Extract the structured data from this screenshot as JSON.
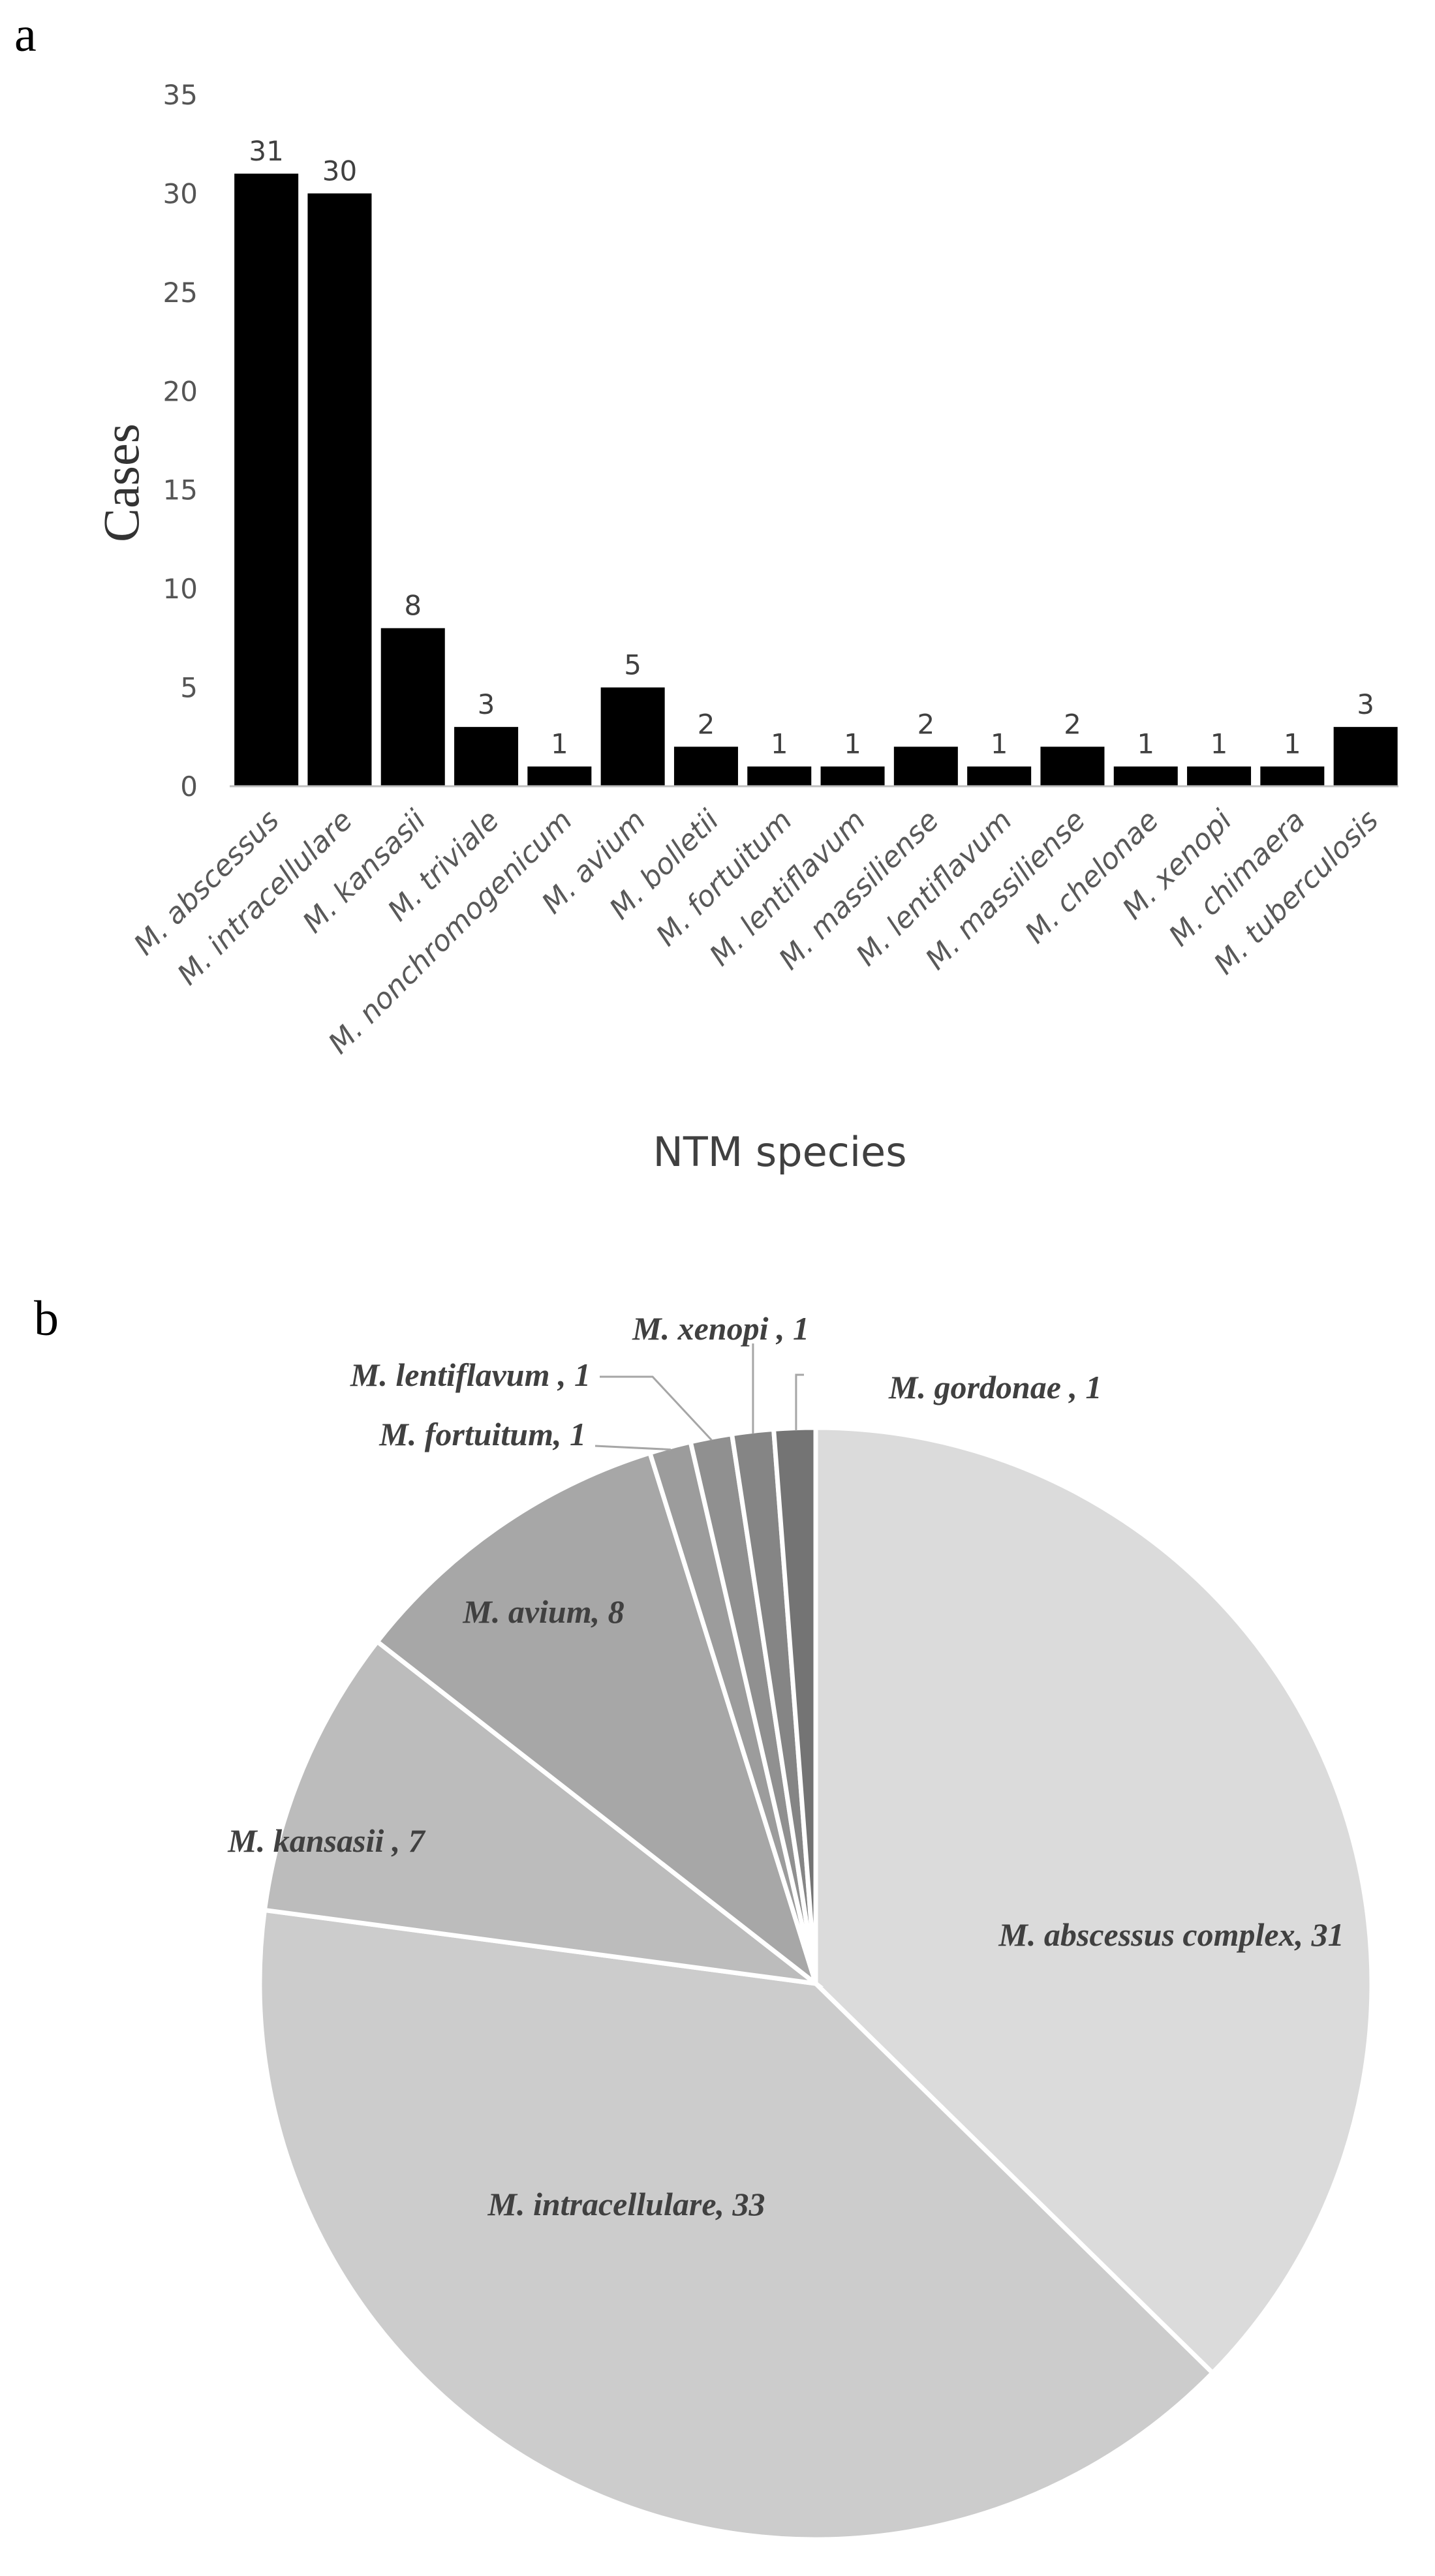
{
  "chart_data": [
    {
      "type": "bar",
      "panel_label": "a",
      "xlabel": "NTM species",
      "ylabel": "Cases",
      "ylim": [
        0,
        35
      ],
      "yticks": [
        "0",
        "5",
        "10",
        "15",
        "20",
        "25",
        "30",
        "35"
      ],
      "grid": false,
      "categories": [
        "M. abscessus",
        "M. intracellulare",
        "M. kansasii",
        "M. triviale",
        "M. nonchromogenicum",
        "M. avium",
        "M. bolletii",
        "M. fortuitum",
        "M. lentiflavum",
        "M. massiliense",
        "M. lentiflavum",
        "M. massiliense",
        "M. chelonae",
        "M. xenopi",
        "M. chimaera",
        "M. tuberculosis"
      ],
      "values": [
        31,
        30,
        8,
        3,
        1,
        5,
        2,
        1,
        1,
        2,
        1,
        2,
        1,
        1,
        1,
        3
      ],
      "value_labels": [
        "31",
        "30",
        "8",
        "3",
        "1",
        "5",
        "2",
        "1",
        "1",
        "2",
        "1",
        "2",
        "1",
        "1",
        "1",
        "3"
      ],
      "bar_color": "#000000"
    },
    {
      "type": "pie",
      "panel_label": "b",
      "slices": [
        {
          "label": "M. abscessus complex, 31",
          "value": 31,
          "color": "#dbdbdb"
        },
        {
          "label": "M. intracellulare, 33",
          "value": 33,
          "color": "#cccccc"
        },
        {
          "label": "M. kansasii , 7",
          "value": 7,
          "color": "#bcbcbc"
        },
        {
          "label": "M. avium, 8",
          "value": 8,
          "color": "#a7a7a7"
        },
        {
          "label": "M. fortuitum, 1",
          "value": 1,
          "color": "#9c9c9c"
        },
        {
          "label": "M. lentiflavum , 1",
          "value": 1,
          "color": "#909090"
        },
        {
          "label": "M. xenopi , 1",
          "value": 1,
          "color": "#858585"
        },
        {
          "label": "M. gordonae , 1",
          "value": 1,
          "color": "#747474"
        }
      ]
    }
  ]
}
